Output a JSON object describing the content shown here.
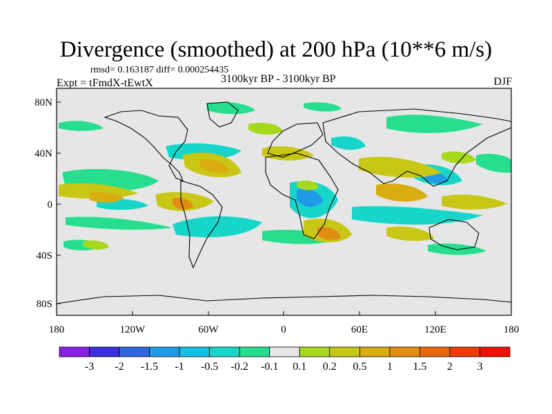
{
  "title": "Divergence (smoothed) at 200 hPa (10**6 m/s)",
  "stats": "rmsd= 0.163187 diff= 0.000254435",
  "experiment": "Expt = tFmdX-tEwtX",
  "period": "3100kyr BP - 3100kyr BP",
  "season": "DJF",
  "lat_labels": [
    "80N",
    "40N",
    "0",
    "40S",
    "80S"
  ],
  "lon_labels": [
    "180",
    "120W",
    "60W",
    "0",
    "60E",
    "120E",
    "180"
  ],
  "colorbar": {
    "labels": [
      "-3",
      "-2",
      "-1.5",
      "-1",
      "-0.5",
      "-0.2",
      "-0.1",
      "0.1",
      "0.2",
      "0.5",
      "1",
      "1.5",
      "2",
      "3"
    ],
    "colors": [
      "#8a1fe6",
      "#3d2ee0",
      "#2f68e0",
      "#1f9be6",
      "#13bee6",
      "#17d6c9",
      "#27de8e",
      "#e6e6e6",
      "#a6d81c",
      "#c9c716",
      "#d9ac12",
      "#e08c10",
      "#e8660c",
      "#ee3a08",
      "#f20f06"
    ]
  },
  "map_colors": {
    "background": "#e6e6e6",
    "coast": "#000000"
  }
}
